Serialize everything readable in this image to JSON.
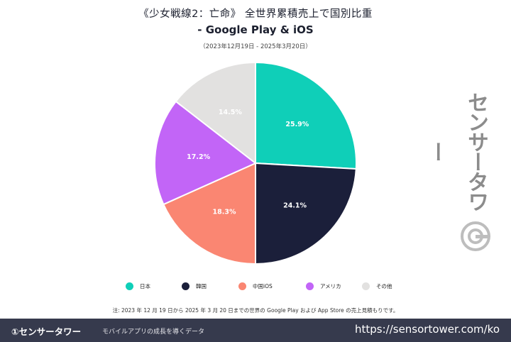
{
  "header": {
    "title_line1": "《少女戦線2：亡命》 全世界累積売上で国別比重",
    "title_line2": "- Google Play & iOS",
    "date_range": "（2023年12月19日 - 2025年3月20日）"
  },
  "chart_data": {
    "type": "pie",
    "title": "《少女戦線2：亡命》 全世界累積売上で国別比重 - Google Play & iOS",
    "subtitle": "（2023年12月19日 - 2025年3月20日）",
    "categories": [
      "日本",
      "韓国",
      "中国iOS",
      "アメリカ",
      "その他"
    ],
    "values": [
      25.9,
      24.1,
      18.3,
      17.2,
      14.5
    ],
    "labels": [
      "25.9%",
      "24.1%",
      "18.3%",
      "17.2%",
      "14.5%"
    ],
    "colors": [
      "#0fcfb8",
      "#1b1f3a",
      "#fa8672",
      "#c265f7",
      "#e2e1e0"
    ],
    "label_colors": [
      "#ffffff",
      "#ffffff",
      "#ffffff",
      "#ffffff",
      "#ffffff"
    ],
    "legend_position": "bottom"
  },
  "watermark": {
    "text": "センサータワー"
  },
  "note": "注: 2023 年 12 月 19 日から 2025 年 3 月 20 日までの世界の Google Play および App Store の売上見積もりです。",
  "footer": {
    "brand": "①センサータワー",
    "tagline": "モバイルアプリの成長を導くデータ",
    "url": "https://sensortower.com/ko"
  }
}
